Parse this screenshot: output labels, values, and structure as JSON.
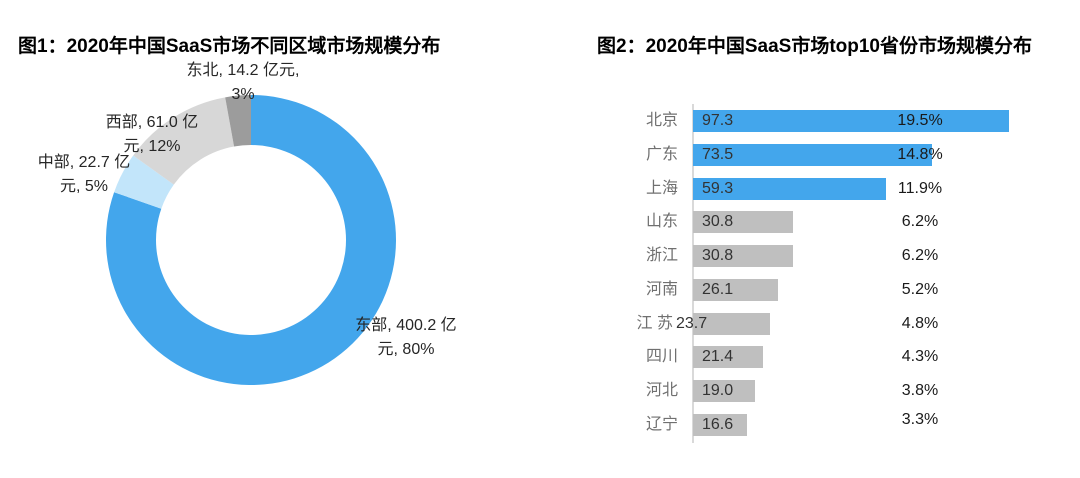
{
  "page": {
    "background": "#ffffff"
  },
  "colors": {
    "accent_blue": "#43a6ec",
    "light_blue": "#c2e5fa",
    "light_gray": "#d7d7d7",
    "dark_gray": "#9c9c9c",
    "bar_gray": "#bfbfbf",
    "axis_line": "#d9d9d9",
    "category_text": "#707070",
    "value_text": "#333333",
    "percent_text": "#1a1a1a",
    "title_text": "#000000"
  },
  "chart_data": [
    {
      "type": "pie",
      "subtype": "donut",
      "title": "图1：2020年中国SaaS市场不同区域市场规模分布",
      "unit": "亿元",
      "legend_position": "none",
      "segments": [
        {
          "name": "东部",
          "value": 400.2,
          "pct": "80%",
          "color": "#43a6ec",
          "label_lines": [
            "东部, 400.2 亿",
            "元, 80%"
          ]
        },
        {
          "name": "中部",
          "value": 22.7,
          "pct": "5%",
          "color": "#c2e5fa",
          "label_lines": [
            "中部, 22.7 亿",
            "元, 5%"
          ]
        },
        {
          "name": "西部",
          "value": 61.0,
          "pct": "12%",
          "color": "#d7d7d7",
          "label_lines": [
            "西部, 61.0 亿",
            "元, 12%"
          ]
        },
        {
          "name": "东北",
          "value": 14.2,
          "pct": "3%",
          "color": "#9c9c9c",
          "label_lines": [
            "东北, 14.2 亿元,",
            "3%"
          ]
        }
      ]
    },
    {
      "type": "bar",
      "orientation": "horizontal",
      "title": "图2：2020年中国SaaS市场top10省份市场规模分布",
      "categories": [
        "北京",
        "广东",
        "上海",
        "山东",
        "浙江",
        "河南",
        "江 苏",
        "四川",
        "河北",
        "辽宁"
      ],
      "values": [
        97.3,
        73.5,
        59.3,
        30.8,
        30.8,
        26.1,
        23.7,
        21.4,
        19.0,
        16.6
      ],
      "value_labels": [
        "97.3",
        "73.5",
        "59.3",
        "30.8",
        "30.8",
        "26.1",
        "23.7",
        "21.4",
        "19.0",
        "16.6"
      ],
      "pct_labels": [
        "19.5%",
        "14.8%",
        "11.9%",
        "6.2%",
        "6.2%",
        "5.2%",
        "4.8%",
        "4.3%",
        "3.8%",
        "3.3%"
      ],
      "bar_colors": [
        "#43a6ec",
        "#43a6ec",
        "#43a6ec",
        "#bfbfbf",
        "#bfbfbf",
        "#bfbfbf",
        "#bfbfbf",
        "#bfbfbf",
        "#bfbfbf",
        "#bfbfbf"
      ],
      "xlim": [
        0,
        100
      ],
      "gridlines": false
    }
  ]
}
